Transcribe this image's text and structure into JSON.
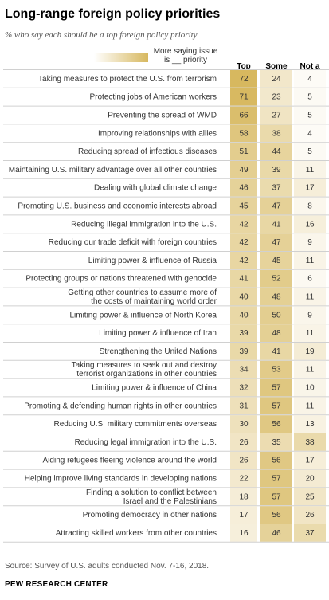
{
  "title": "Long-range foreign policy priorities",
  "subtitle": "% who say each should be a top foreign policy priority",
  "legend": {
    "label_line1": "More saying issue",
    "label_line2": "is __ priority"
  },
  "source": "Source: Survey of U.S. adults conducted Nov. 7-16, 2018.",
  "organization": "PEW RESEARCH CENTER",
  "colors": {
    "heat_high": "#d7b85f",
    "heat_low": "#ffffff",
    "divider": "#d0d0d0"
  },
  "chart_data": {
    "type": "heatmap",
    "title": "Long-range foreign policy priorities",
    "subtitle": "% who say each should be a top foreign policy priority",
    "columns": [
      "Top",
      "Some",
      "Not a"
    ],
    "rows": [
      {
        "label": "Taking measures to protect the U.S. from terrorism",
        "values": [
          72,
          24,
          4
        ]
      },
      {
        "label": "Protecting jobs of American workers",
        "values": [
          71,
          23,
          5
        ]
      },
      {
        "label": "Preventing the spread of WMD",
        "values": [
          66,
          27,
          5
        ]
      },
      {
        "label": "Improving relationships with allies",
        "values": [
          58,
          38,
          4
        ]
      },
      {
        "label": "Reducing spread of infectious diseases",
        "values": [
          51,
          44,
          5
        ]
      },
      {
        "label": "Maintaining U.S. military advantage over all other countries",
        "values": [
          49,
          39,
          11
        ]
      },
      {
        "label": "Dealing with global climate change",
        "values": [
          46,
          37,
          17
        ]
      },
      {
        "label": "Promoting U.S. business and economic interests abroad",
        "values": [
          45,
          47,
          8
        ]
      },
      {
        "label": "Reducing illegal immigration into the U.S.",
        "values": [
          42,
          41,
          16
        ]
      },
      {
        "label": "Reducing our trade deficit with foreign countries",
        "values": [
          42,
          47,
          9
        ]
      },
      {
        "label": "Limiting power & influence of Russia",
        "values": [
          42,
          45,
          11
        ]
      },
      {
        "label": "Protecting groups or nations threatened with genocide",
        "values": [
          41,
          52,
          6
        ]
      },
      {
        "label": "Getting other countries to assume more of the costs of maintaining world order",
        "lines": [
          "Getting other countries to assume more of",
          "the costs of maintaining world order"
        ],
        "values": [
          40,
          48,
          11
        ]
      },
      {
        "label": "Limiting power & influence of North Korea",
        "values": [
          40,
          50,
          9
        ]
      },
      {
        "label": "Limiting power & influence of Iran",
        "values": [
          39,
          48,
          11
        ]
      },
      {
        "label": "Strengthening the United Nations",
        "values": [
          39,
          41,
          19
        ]
      },
      {
        "label": "Taking measures to seek out and destroy terrorist organizations in other countries",
        "lines": [
          "Taking measures to seek out and destroy",
          "terrorist organizations in other countries"
        ],
        "values": [
          34,
          53,
          11
        ]
      },
      {
        "label": "Limiting power & influence of China",
        "values": [
          32,
          57,
          10
        ]
      },
      {
        "label": "Promoting & defending human rights in other countries",
        "values": [
          31,
          57,
          11
        ]
      },
      {
        "label": "Reducing U.S. military commitments overseas",
        "values": [
          30,
          56,
          13
        ]
      },
      {
        "label": "Reducing legal immigration into the U.S.",
        "values": [
          26,
          35,
          38
        ]
      },
      {
        "label": "Aiding refugees fleeing violence around the world",
        "values": [
          26,
          56,
          17
        ]
      },
      {
        "label": "Helping improve living standards in developing nations",
        "values": [
          22,
          57,
          20
        ]
      },
      {
        "label": "Finding a solution to conflict between Israel and the Palestinians",
        "lines": [
          "Finding a solution to conflict between",
          "Israel and the Palestinians"
        ],
        "values": [
          18,
          57,
          25
        ]
      },
      {
        "label": "Promoting democracy in other nations",
        "values": [
          17,
          56,
          26
        ]
      },
      {
        "label": "Attracting skilled workers from other countries",
        "values": [
          16,
          46,
          37
        ]
      }
    ]
  }
}
